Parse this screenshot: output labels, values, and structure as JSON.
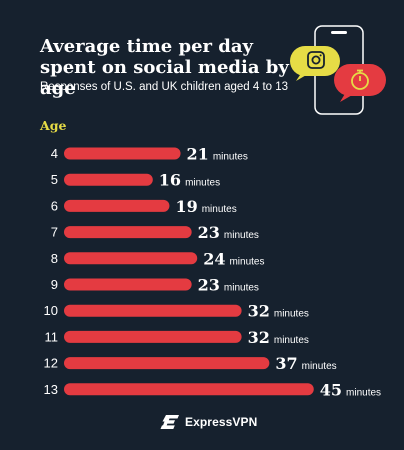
{
  "chart_data": {
    "type": "bar",
    "orientation": "horizontal",
    "title": "Average time per day spent on social media by age",
    "subtitle": "Responses of U.S. and UK children aged 4 to 13",
    "ylabel": "Age",
    "categories": [
      "4",
      "5",
      "6",
      "7",
      "8",
      "9",
      "10",
      "11",
      "12",
      "13"
    ],
    "values": [
      21,
      16,
      19,
      23,
      24,
      23,
      32,
      32,
      37,
      45
    ],
    "value_suffix": "minutes",
    "bar_color": "#e43b41",
    "accent_color": "#e6dc46",
    "background": "#16212e"
  },
  "footer": {
    "brand": "ExpressVPN"
  },
  "icons": [
    "phone-icon",
    "instagram-icon",
    "stopwatch-icon",
    "expressvpn-logo-icon"
  ]
}
